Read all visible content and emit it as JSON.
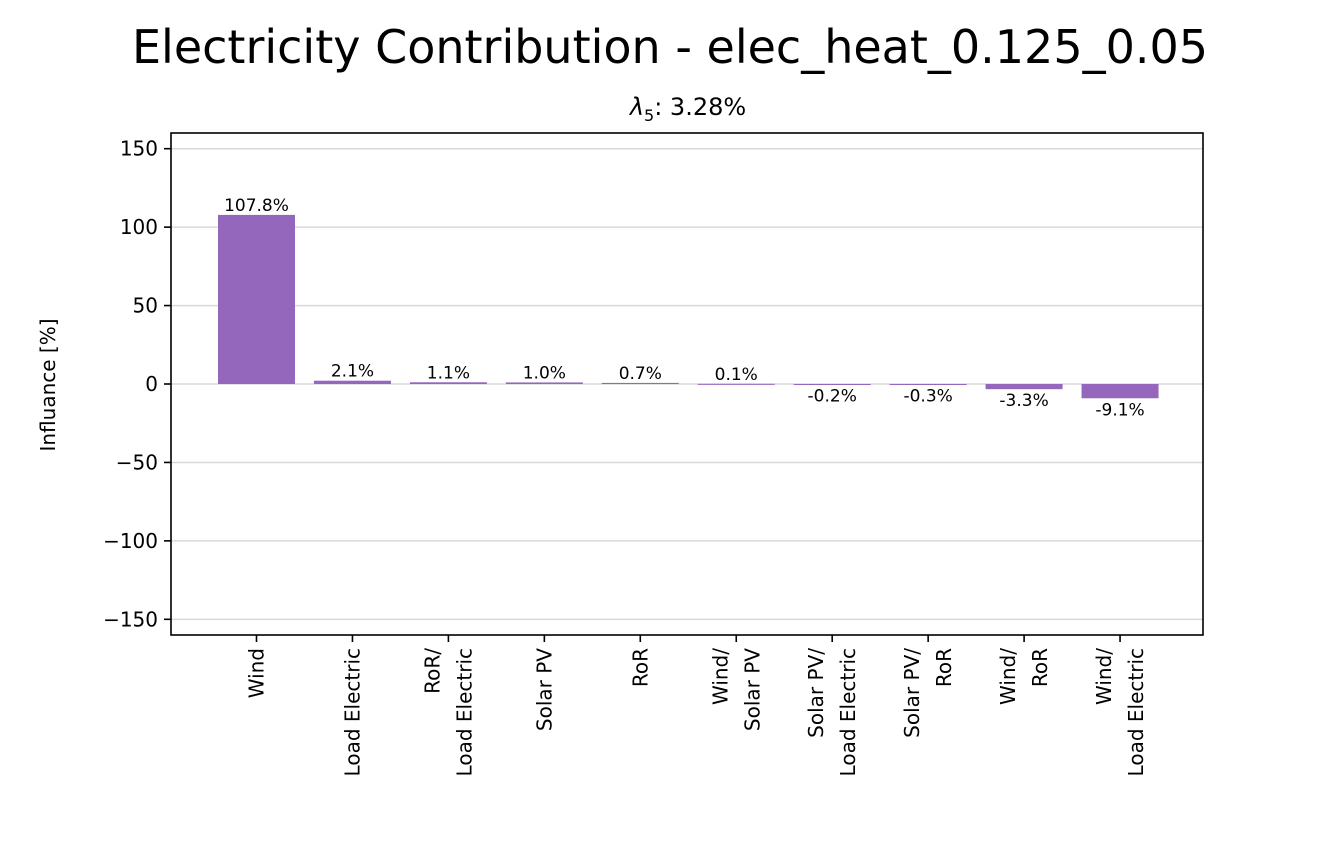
{
  "figure": {
    "title": "Electricity Contribution - elec_heat_0.125_0.05",
    "subtitle_symbol": "λ",
    "subtitle_subscript": "5",
    "subtitle_rest": ": 3.28%"
  },
  "colors": {
    "bar": "#9467bd",
    "grid": "#d9d9d9",
    "axis": "#000000"
  },
  "chart_data": {
    "type": "bar",
    "title": "",
    "xlabel": "",
    "ylabel": "Influance [%]",
    "ylim": [
      -160,
      160
    ],
    "yticks": [
      -150,
      -100,
      -50,
      0,
      50,
      100,
      150
    ],
    "ytick_labels": [
      "−150",
      "−100",
      "−50",
      "0",
      "50",
      "100",
      "150"
    ],
    "grid": "horizontal",
    "categories": [
      [
        "Wind"
      ],
      [
        "Load Electric"
      ],
      [
        "RoR/",
        "Load Electric"
      ],
      [
        "Solar PV"
      ],
      [
        "RoR"
      ],
      [
        "Wind/",
        "Solar PV"
      ],
      [
        "Solar PV/",
        "Load Electric"
      ],
      [
        "Solar PV/",
        "RoR"
      ],
      [
        "Wind/",
        "RoR"
      ],
      [
        "Wind/",
        "Load Electric"
      ]
    ],
    "values": [
      107.8,
      2.1,
      1.1,
      1.0,
      0.7,
      0.1,
      -0.2,
      -0.3,
      -3.3,
      -9.1
    ],
    "value_labels": [
      "107.8%",
      "2.1%",
      "1.1%",
      "1.0%",
      "0.7%",
      "0.1%",
      "-0.2%",
      "-0.3%",
      "-3.3%",
      "-9.1%"
    ]
  }
}
